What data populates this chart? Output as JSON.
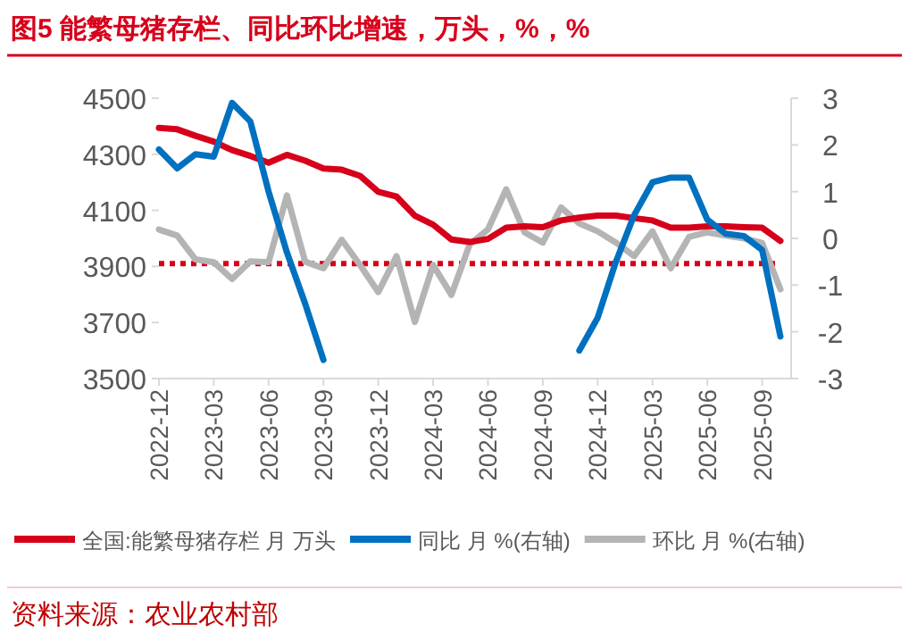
{
  "chart_data": {
    "type": "line",
    "title": "图5  能繁母猪存栏、同比环比增速，万头，%，%",
    "x": [
      "2022-12",
      "2023-01",
      "2023-02",
      "2023-03",
      "2023-04",
      "2023-05",
      "2023-06",
      "2023-07",
      "2023-08",
      "2023-09",
      "2023-10",
      "2023-11",
      "2023-12",
      "2024-01",
      "2024-02",
      "2024-03",
      "2024-04",
      "2024-05",
      "2024-06",
      "2024-07",
      "2024-08",
      "2024-09",
      "2024-10",
      "2024-11",
      "2024-12",
      "2025-01",
      "2025-02",
      "2025-03",
      "2025-04",
      "2025-05",
      "2025-06",
      "2025-07",
      "2025-08",
      "2025-09",
      "2025-10"
    ],
    "series": [
      {
        "name": "全国:能繁母猪存栏 月 万头",
        "color": "#d7001b",
        "values": [
          4394,
          4389,
          4366,
          4345,
          4315,
          4294,
          4270,
          4298,
          4277,
          4249,
          4245,
          4223,
          4166,
          4149,
          4081,
          4049,
          3996,
          3987,
          3998,
          4038,
          4043,
          4040,
          4064,
          4074,
          4081,
          4081,
          4072,
          4064,
          4038,
          4038,
          4043,
          4043,
          4040,
          4038,
          3991
        ]
      },
      {
        "name": "同比 月 %(右轴)",
        "color": "#0070c0",
        "axis": "y2",
        "values": [
          1.9,
          1.5,
          1.8,
          1.75,
          2.9,
          2.5,
          1.0,
          -0.3,
          -1.4,
          -2.6,
          null,
          null,
          null,
          null,
          null,
          null,
          null,
          null,
          null,
          null,
          null,
          null,
          null,
          -2.4,
          -1.7,
          -0.5,
          0.5,
          1.2,
          1.3,
          1.3,
          0.4,
          0.1,
          0.05,
          -0.25,
          -2.1
        ]
      },
      {
        "name": "环比 月 %(右轴)",
        "color": "#b4b4b4",
        "axis": "y2",
        "values": [
          0.19,
          0.06,
          -0.45,
          -0.51,
          -0.87,
          -0.49,
          -0.51,
          0.92,
          -0.5,
          -0.64,
          -0.03,
          -0.57,
          -1.15,
          -0.38,
          -1.79,
          -0.57,
          -1.21,
          -0.13,
          0.19,
          1.05,
          0.13,
          -0.09,
          0.66,
          0.32,
          0.15,
          -0.09,
          -0.38,
          0.15,
          -0.64,
          0.03,
          0.13,
          0.06,
          0,
          -0.1,
          -1.09
        ]
      }
    ],
    "xlim": [
      "2022-12",
      "2025-10"
    ],
    "xticks": [
      "2022-12",
      "2023-03",
      "2023-06",
      "2023-09",
      "2023-12",
      "2024-03",
      "2024-06",
      "2024-09",
      "2024-12",
      "2025-03",
      "2025-06",
      "2025-09"
    ],
    "ylim": [
      3500,
      4500
    ],
    "yticks": [
      3500,
      3700,
      3900,
      4100,
      4300,
      4500
    ],
    "y2lim": [
      -3,
      3
    ],
    "y2ticks": [
      -3,
      -2,
      -1,
      0,
      1,
      2,
      3
    ],
    "ref_lines": [
      {
        "axis": "y",
        "value": 3910,
        "color": "#d7001b",
        "line_style": "dotted"
      }
    ],
    "legend": "bottom",
    "grid": false,
    "annotations": [
      "资料来源：农业农村部"
    ]
  }
}
